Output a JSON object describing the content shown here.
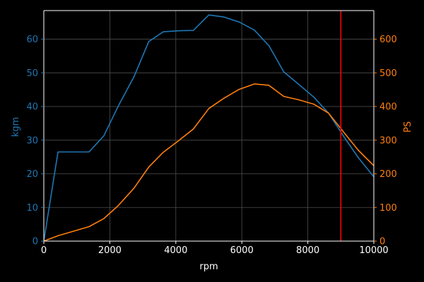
{
  "chart_data": {
    "type": "line",
    "xlabel": "rpm",
    "xlim": [
      0,
      10000
    ],
    "x_ticks": [
      0,
      2000,
      4000,
      6000,
      8000,
      10000
    ],
    "x_tick_labels": [
      "0",
      "2000",
      "4000",
      "6000",
      "8000",
      "10000"
    ],
    "grid": true,
    "background": "#000000",
    "foreground": "#ffffff",
    "y_left": {
      "label": "kgm",
      "ylim": [
        0,
        68.5
      ],
      "ticks": [
        0,
        10,
        20,
        30,
        40,
        50,
        60
      ],
      "tick_labels": [
        "0",
        "10",
        "20",
        "30",
        "40",
        "50",
        "60"
      ],
      "color": "#1f77b4"
    },
    "y_right": {
      "label": "PS",
      "ylim": [
        0,
        685
      ],
      "ticks": [
        0,
        100,
        200,
        300,
        400,
        500,
        600
      ],
      "tick_labels": [
        "0",
        "100",
        "200",
        "300",
        "400",
        "500",
        "600"
      ],
      "color": "#ff7f0e"
    },
    "series": [
      {
        "axis": "left",
        "color": "#1f77b4",
        "x": [
          0,
          430,
          1370,
          1820,
          2250,
          2730,
          3180,
          3620,
          4080,
          4530,
          5000,
          5450,
          5920,
          6380,
          6820,
          7270,
          7720,
          8180,
          8630,
          9100,
          9530,
          10000
        ],
        "y": [
          0,
          26.5,
          26.5,
          31.3,
          40.0,
          48.8,
          59.3,
          62.2,
          62.5,
          62.6,
          67.2,
          66.6,
          65.1,
          62.7,
          58.1,
          50.3,
          46.6,
          42.8,
          38.0,
          30.9,
          24.8,
          19.1
        ]
      },
      {
        "axis": "right",
        "color": "#ff7f0e",
        "x": [
          0,
          430,
          1370,
          1820,
          2250,
          2730,
          3180,
          3620,
          4080,
          4530,
          5000,
          5450,
          5920,
          6380,
          6820,
          7270,
          7720,
          8180,
          8630,
          9100,
          9530,
          10000
        ],
        "y": [
          0,
          16,
          43,
          67,
          105,
          157,
          220,
          264,
          298,
          333,
          394,
          424,
          451,
          467,
          463,
          430,
          420,
          407,
          380,
          322,
          270,
          224
        ]
      }
    ],
    "vline": {
      "x": 9000,
      "color": "#ff0000"
    }
  }
}
